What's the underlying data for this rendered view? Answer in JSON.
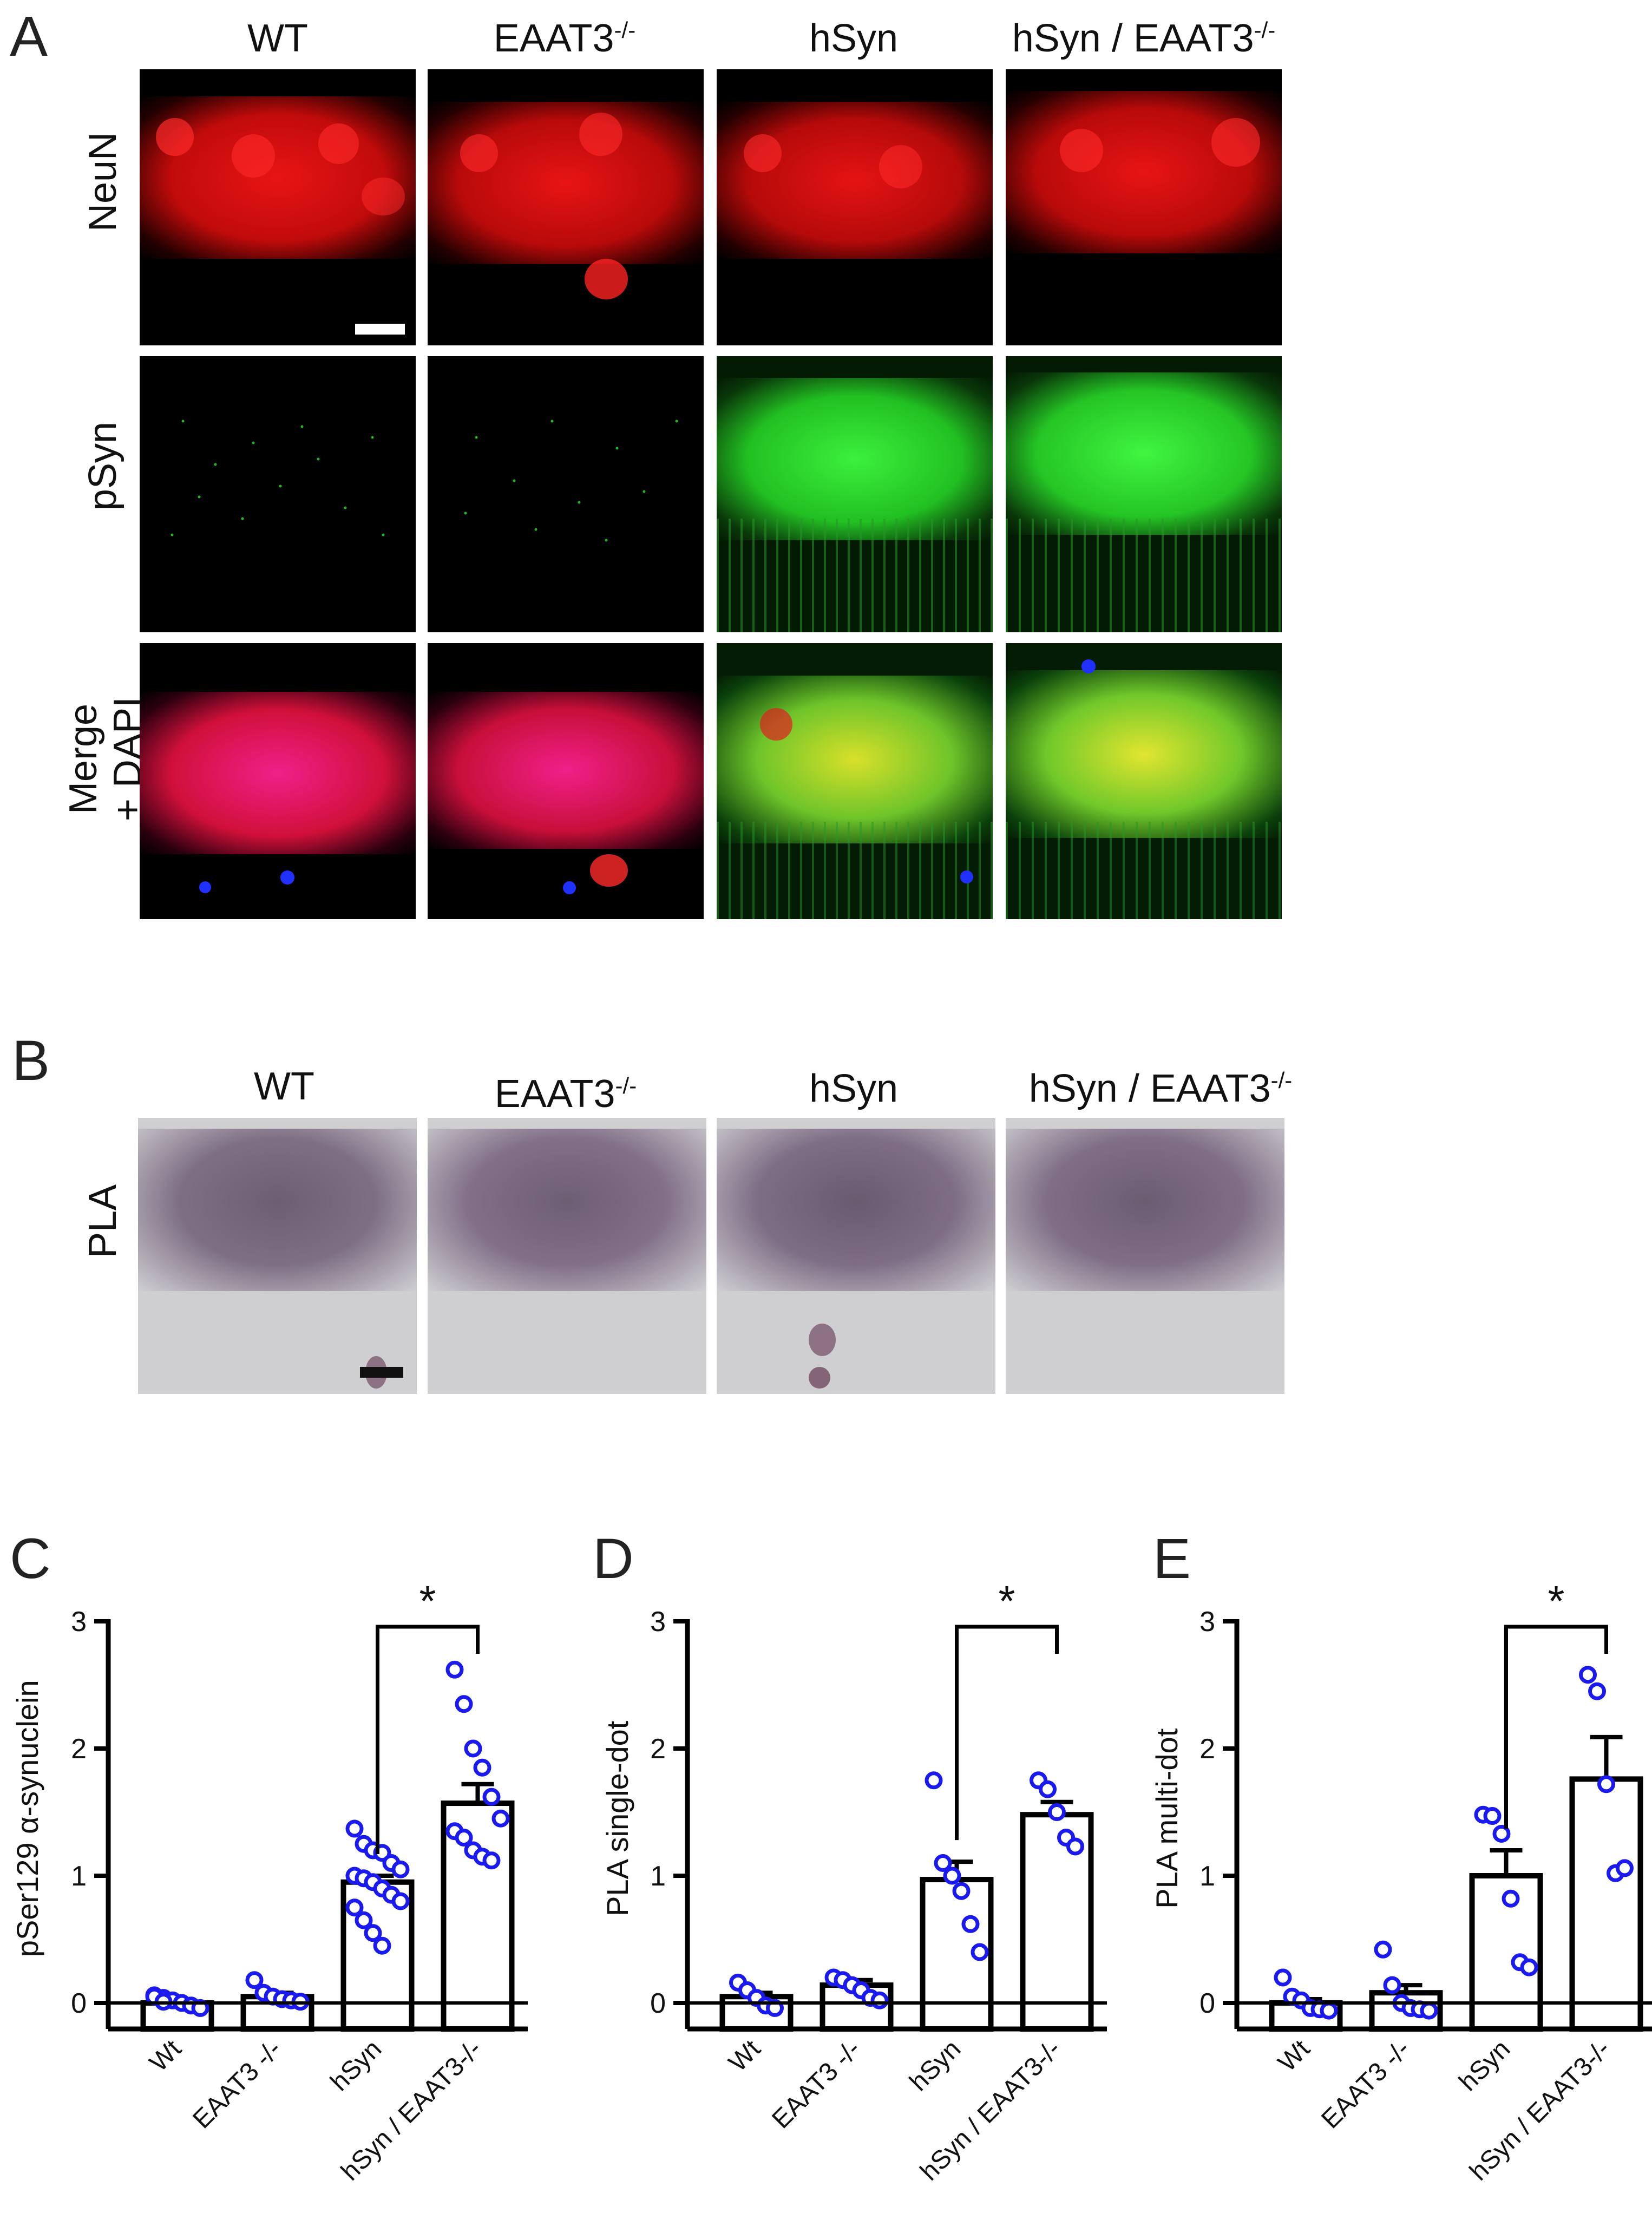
{
  "panel_letters": [
    "A",
    "B",
    "C",
    "D",
    "E"
  ],
  "panel_a": {
    "columns": [
      "WT",
      "EAAT3",
      "hSyn",
      "hSyn / EAAT3"
    ],
    "columns_sup": [
      "",
      "-/-",
      "",
      "-/-"
    ],
    "rows": [
      "NeuN",
      "pSyn",
      "Merge\n+ DAPI"
    ]
  },
  "panel_b": {
    "columns": [
      "WT",
      "EAAT3",
      "hSyn",
      "hSyn / EAAT3"
    ],
    "columns_sup": [
      "",
      "-/-",
      "",
      "-/-"
    ],
    "row": "PLA"
  },
  "colors": {
    "neun": "#e0100f",
    "psyn": "#2ee52e",
    "dapi": "#2030ff",
    "bar_outline": "#000000",
    "points": "#1a1aee"
  },
  "chart_data": [
    {
      "type": "bar",
      "panel": "C",
      "ylabel": "pSer129 α-synuclein",
      "xlabel": "",
      "categories": [
        "Wt",
        "EAAT3 -/-",
        "hSyn",
        "hSyn / EAAT3-/-"
      ],
      "values": [
        0.0,
        0.05,
        0.95,
        1.57
      ],
      "errors": [
        0.02,
        0.03,
        0.05,
        0.15
      ],
      "ylim": [
        0,
        3
      ],
      "yticks": [
        0,
        1,
        2,
        3
      ],
      "points": [
        [
          0.06,
          0.04,
          0.02,
          0.0,
          -0.02,
          -0.04,
          0.05,
          0.01
        ],
        [
          0.18,
          0.08,
          0.05,
          0.03,
          0.02,
          0.01
        ],
        [
          1.37,
          1.25,
          1.2,
          1.18,
          1.1,
          1.05,
          1.0,
          0.98,
          0.95,
          0.9,
          0.85,
          0.8,
          0.75,
          0.65,
          0.55,
          0.45
        ],
        [
          2.62,
          2.35,
          2.0,
          1.85,
          1.62,
          1.45,
          1.35,
          1.3,
          1.2,
          1.15,
          1.12
        ]
      ],
      "significance": {
        "pair": [
          2,
          3
        ],
        "label": "*"
      }
    },
    {
      "type": "bar",
      "panel": "D",
      "ylabel": "PLA single-dot",
      "xlabel": "",
      "categories": [
        "Wt",
        "EAAT3 -/-",
        "hSyn",
        "hSyn / EAAT3-/-"
      ],
      "values": [
        0.05,
        0.14,
        0.97,
        1.48
      ],
      "errors": [
        0.03,
        0.04,
        0.14,
        0.1
      ],
      "ylim": [
        0,
        3
      ],
      "yticks": [
        0,
        1,
        2,
        3
      ],
      "points": [
        [
          0.16,
          0.1,
          0.04,
          -0.02,
          -0.04
        ],
        [
          0.2,
          0.18,
          0.14,
          0.1,
          0.04,
          0.02
        ],
        [
          1.75,
          1.1,
          1.0,
          0.88,
          0.62,
          0.4
        ],
        [
          1.75,
          1.68,
          1.5,
          1.3,
          1.23
        ]
      ],
      "significance": {
        "pair": [
          2,
          3
        ],
        "label": "*"
      }
    },
    {
      "type": "bar",
      "panel": "E",
      "ylabel": "PLA multi-dot",
      "xlabel": "",
      "categories": [
        "Wt",
        "EAAT3 -/-",
        "hSyn",
        "hSyn / EAAT3-/-"
      ],
      "values": [
        0.0,
        0.08,
        1.0,
        1.76
      ],
      "errors": [
        0.03,
        0.06,
        0.2,
        0.33
      ],
      "ylim": [
        0,
        3
      ],
      "yticks": [
        0,
        1,
        2,
        3
      ],
      "points": [
        [
          0.2,
          0.05,
          0.02,
          -0.04,
          -0.05,
          -0.06
        ],
        [
          0.42,
          0.14,
          0.0,
          -0.04,
          -0.05,
          -0.06
        ],
        [
          1.48,
          1.47,
          1.33,
          0.82,
          0.32,
          0.28
        ],
        [
          2.58,
          2.45,
          1.72,
          1.02,
          1.06
        ]
      ],
      "significance": {
        "pair": [
          2,
          3
        ],
        "label": "*"
      }
    }
  ]
}
